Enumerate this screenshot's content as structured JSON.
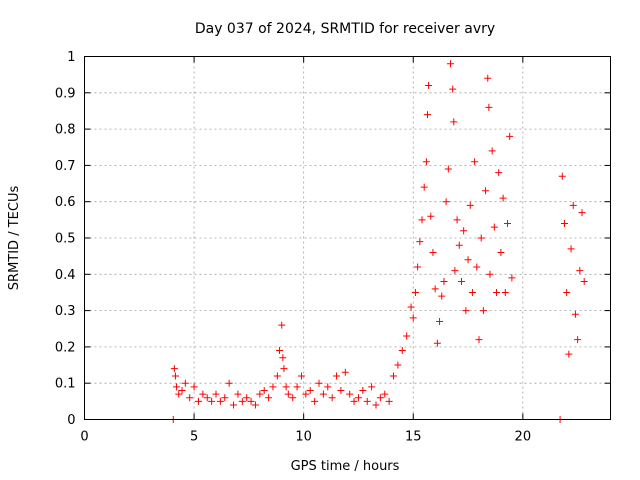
{
  "chart_data": {
    "type": "scatter",
    "title": "Day 037 of 2024, SRMTID for receiver avry",
    "xlabel": "GPS time / hours",
    "ylabel": "SRMTID / TECUs",
    "xlim": [
      0,
      24
    ],
    "ylim": [
      0,
      1
    ],
    "x_ticks": [
      0,
      5,
      10,
      15,
      20
    ],
    "x_tick_labels": [
      "0",
      "5",
      "10",
      "15",
      "20"
    ],
    "y_ticks": [
      0,
      0.1,
      0.2,
      0.3,
      0.4,
      0.5,
      0.6,
      0.7,
      0.8,
      0.9,
      1
    ],
    "y_tick_labels": [
      "0",
      "0.1",
      "0.2",
      "0.3",
      "0.4",
      "0.5",
      "0.6",
      "0.7",
      "0.8",
      "0.9",
      "1"
    ],
    "grid": true,
    "marker": "plus",
    "colors": {
      "series": "#ff0000",
      "grid": "#a0a0a0",
      "axis": "#000000"
    },
    "series": [
      {
        "name": "SRMTID",
        "x": [
          4.05,
          4.1,
          4.15,
          4.2,
          4.3,
          4.45,
          4.6,
          4.8,
          5.0,
          5.2,
          5.4,
          5.6,
          5.8,
          6.0,
          6.2,
          6.4,
          6.6,
          6.8,
          7.0,
          7.2,
          7.4,
          7.6,
          7.8,
          8.0,
          8.2,
          8.4,
          8.6,
          8.8,
          8.9,
          9.0,
          9.05,
          9.1,
          9.2,
          9.3,
          9.5,
          9.7,
          9.9,
          10.1,
          10.3,
          10.5,
          10.7,
          10.9,
          11.1,
          11.3,
          11.5,
          11.7,
          11.9,
          12.1,
          12.3,
          12.5,
          12.7,
          12.9,
          13.1,
          13.3,
          13.5,
          13.7,
          13.9,
          14.1,
          14.3,
          14.5,
          14.7,
          14.9,
          15.0,
          15.1,
          15.2,
          15.3,
          15.4,
          15.5,
          15.6,
          15.65,
          15.7,
          15.8,
          15.9,
          16.0,
          16.1,
          16.2,
          16.3,
          16.4,
          16.5,
          16.6,
          16.7,
          16.8,
          16.85,
          16.9,
          17.0,
          17.1,
          17.2,
          17.3,
          17.4,
          17.5,
          17.6,
          17.7,
          17.8,
          17.9,
          18.0,
          18.1,
          18.2,
          18.3,
          18.4,
          18.45,
          18.5,
          18.6,
          18.7,
          18.8,
          18.9,
          19.0,
          19.1,
          19.2,
          19.3,
          19.4,
          19.5,
          21.7,
          21.8,
          21.9,
          22.0,
          22.1,
          22.2,
          22.3,
          22.4,
          22.5,
          22.6,
          22.7,
          22.8
        ],
        "y": [
          0.0,
          0.14,
          0.12,
          0.09,
          0.07,
          0.08,
          0.1,
          0.06,
          0.09,
          0.05,
          0.07,
          0.06,
          0.05,
          0.07,
          0.05,
          0.06,
          0.1,
          0.04,
          0.07,
          0.05,
          0.06,
          0.05,
          0.04,
          0.07,
          0.08,
          0.06,
          0.09,
          0.12,
          0.19,
          0.26,
          0.17,
          0.14,
          0.09,
          0.07,
          0.06,
          0.09,
          0.12,
          0.07,
          0.08,
          0.05,
          0.1,
          0.07,
          0.09,
          0.06,
          0.12,
          0.08,
          0.13,
          0.07,
          0.05,
          0.06,
          0.08,
          0.05,
          0.09,
          0.04,
          0.06,
          0.07,
          0.05,
          0.12,
          0.15,
          0.19,
          0.23,
          0.31,
          0.28,
          0.35,
          0.42,
          0.49,
          0.55,
          0.64,
          0.71,
          0.84,
          0.92,
          0.56,
          0.46,
          0.36,
          0.21,
          0.27,
          0.34,
          0.38,
          0.6,
          0.69,
          0.98,
          0.91,
          0.82,
          0.41,
          0.55,
          0.48,
          0.38,
          0.52,
          0.3,
          0.44,
          0.59,
          0.35,
          0.71,
          0.42,
          0.22,
          0.5,
          0.3,
          0.63,
          0.94,
          0.86,
          0.4,
          0.74,
          0.53,
          0.35,
          0.68,
          0.46,
          0.61,
          0.35,
          0.54,
          0.78,
          0.39,
          0.0,
          0.67,
          0.54,
          0.35,
          0.18,
          0.47,
          0.59,
          0.29,
          0.22,
          0.41,
          0.57,
          0.38
        ]
      }
    ]
  }
}
